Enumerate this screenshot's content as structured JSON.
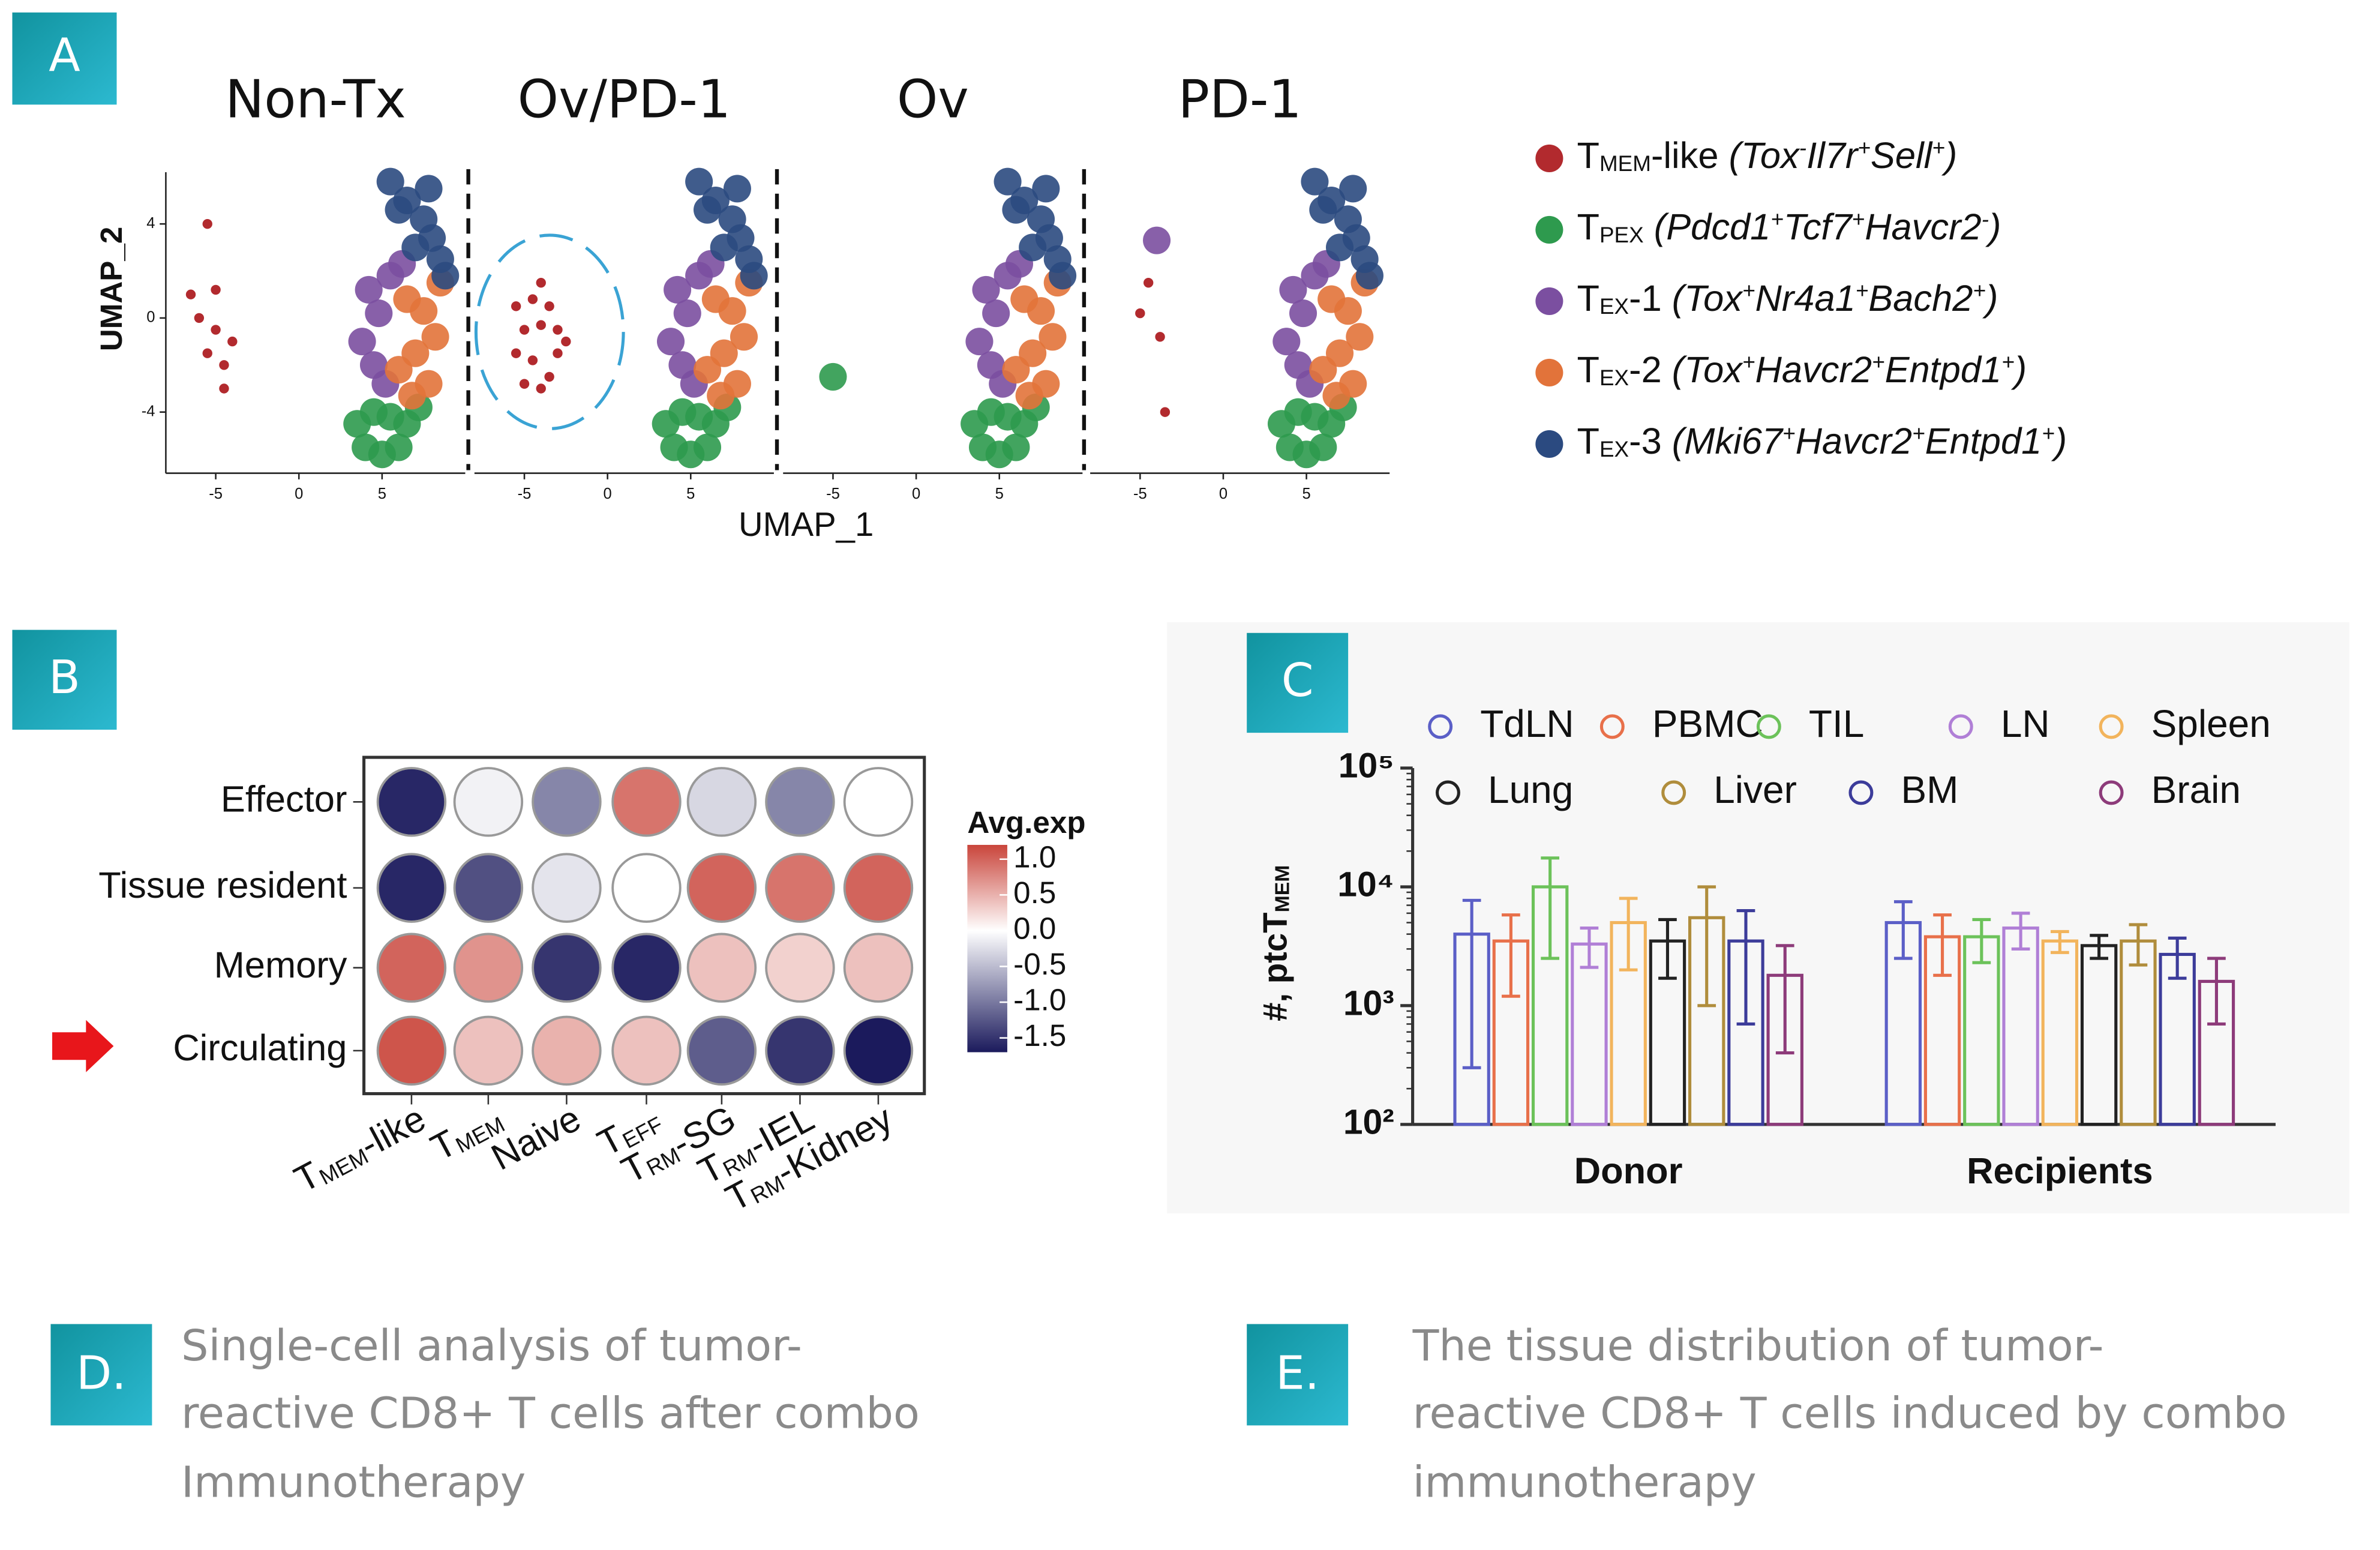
{
  "labels": [
    "A",
    "B",
    "C",
    "D.",
    "E."
  ],
  "captions": [
    [
      "Single-cell analysis of tumor-",
      "reactive CD8+ T cells after combo",
      "Immunotherapy"
    ],
    [
      "The tissue distribution of tumor-",
      "reactive CD8+ T cells induced by combo",
      "immunotherapy"
    ]
  ],
  "chart_data": [
    {
      "type": "scatter",
      "xlabel": "UMAP_1",
      "ylabel": "UMAP_2",
      "xlim": [
        -8,
        10
      ],
      "ylim": [
        -6.6,
        6.2
      ],
      "xticks": [
        -5,
        0,
        5
      ],
      "yticks": [
        -4,
        0,
        4
      ],
      "series": [
        {
          "name": [
            "T",
            "MEM",
            "-like ",
            "(Tox",
            "-",
            "Il7r",
            "+",
            "Sell",
            "+",
            ")"
          ],
          "name_format": [
            "plain",
            "sub",
            "plain",
            "italic",
            "sup",
            "italic",
            "sup",
            "italic",
            "sup",
            "italic"
          ],
          "color": "#b22a2e"
        },
        {
          "name": [
            "T",
            "PEX",
            " (Pdcd1",
            "+",
            "Tcf7",
            "+",
            "Havcr2",
            "-",
            ")"
          ],
          "name_format": [
            "plain",
            "sub",
            "italic",
            "sup",
            "italic",
            "sup",
            "italic",
            "sup",
            "italic"
          ],
          "color": "#2e9a4e"
        },
        {
          "name": [
            "T",
            "EX",
            "-1 ",
            "(Tox",
            "+",
            "Nr4a1",
            "+",
            "Bach2",
            "+",
            ")"
          ],
          "name_format": [
            "plain",
            "sub",
            "plain",
            "italic",
            "sup",
            "italic",
            "sup",
            "italic",
            "sup",
            "italic"
          ],
          "color": "#7b4fa0"
        },
        {
          "name": [
            "T",
            "EX",
            "-2 ",
            "(Tox",
            "+",
            "Havcr2",
            "+",
            "Entpd1",
            "+",
            ")"
          ],
          "name_format": [
            "plain",
            "sub",
            "plain",
            "italic",
            "sup",
            "italic",
            "sup",
            "italic",
            "sup",
            "italic"
          ],
          "color": "#e2733a"
        },
        {
          "name": [
            "T",
            "EX",
            "-3 ",
            "(Mki67",
            "+",
            "Havcr2",
            "+",
            "Entpd1",
            "+",
            ")"
          ],
          "name_format": [
            "plain",
            "sub",
            "plain",
            "italic",
            "sup",
            "italic",
            "sup",
            "italic",
            "sup",
            "italic"
          ],
          "color": "#2b4a80"
        }
      ],
      "panels": [
        {
          "title": "Non-Tx",
          "data": [
            {
              "x": [
                -5.5,
                -6.5,
                -5,
                -6,
                -5,
                -4,
                -5.5,
                -4.5,
                -4.5
              ],
              "y": [
                4,
                1,
                1.2,
                0,
                -0.5,
                -1,
                -1.5,
                -2,
                -3
              ]
            },
            {
              "x": [
                3.5,
                4.5,
                5.5,
                6.5,
                4,
                5,
                6,
                7.2
              ],
              "y": [
                -4.5,
                -4,
                -4.2,
                -4.5,
                -5.5,
                -5.8,
                -5.5,
                -3.8
              ]
            },
            {
              "x": [
                4.2,
                4.8,
                3.8,
                4.5,
                5.2,
                5.5,
                6.2
              ],
              "y": [
                1.2,
                0.2,
                -1,
                -2,
                -2.8,
                1.8,
                2.3
              ]
            },
            {
              "x": [
                6.5,
                7.5,
                8.2,
                7,
                6,
                7.8,
                6.8,
                8.5
              ],
              "y": [
                0.8,
                0.3,
                -0.8,
                -1.5,
                -2.2,
                -2.8,
                -3.3,
                1.5
              ]
            },
            {
              "x": [
                5.5,
                6.5,
                7.5,
                8,
                8.5,
                7,
                6,
                7.8,
                8.8
              ],
              "y": [
                5.8,
                5,
                4.2,
                3.4,
                2.5,
                3,
                4.6,
                5.5,
                1.8
              ]
            }
          ]
        },
        {
          "title": "Ov/PD-1",
          "data": [
            {
              "x": [
                -5.5,
                -4.5,
                -3.5,
                -3,
                -5,
                -4,
                -3,
                -5.5,
                -4.5,
                -3.5,
                -4,
                -2.5,
                -5,
                -4
              ],
              "y": [
                0.5,
                0.8,
                0.5,
                -0.5,
                -0.5,
                -0.3,
                -1.5,
                -1.5,
                -1.8,
                -2.5,
                -3,
                -1,
                -2.8,
                1.5
              ]
            },
            {
              "x": [
                3.5,
                4.5,
                5.5,
                6.5,
                4,
                5,
                6,
                7.2
              ],
              "y": [
                -4.5,
                -4,
                -4.2,
                -4.5,
                -5.5,
                -5.8,
                -5.5,
                -3.8
              ]
            },
            {
              "x": [
                4.2,
                4.8,
                3.8,
                4.5,
                5.2,
                5.5,
                6.2
              ],
              "y": [
                1.2,
                0.2,
                -1,
                -2,
                -2.8,
                1.8,
                2.3
              ]
            },
            {
              "x": [
                6.5,
                7.5,
                8.2,
                7,
                6,
                7.8,
                6.8,
                8.5
              ],
              "y": [
                0.8,
                0.3,
                -0.8,
                -1.5,
                -2.2,
                -2.8,
                -3.3,
                1.5
              ]
            },
            {
              "x": [
                5.5,
                6.5,
                7.5,
                8,
                8.5,
                7,
                6,
                7.8,
                8.8
              ],
              "y": [
                5.8,
                5,
                4.2,
                3.4,
                2.5,
                3,
                4.6,
                5.5,
                1.8
              ]
            }
          ]
        },
        {
          "title": "Ov",
          "data": [
            {
              "x": [],
              "y": []
            },
            {
              "x": [
                -5,
                3.5,
                4.5,
                5.5,
                6.5,
                4,
                5,
                6,
                7.2
              ],
              "y": [
                -2.5,
                -4.5,
                -4,
                -4.2,
                -4.5,
                -5.5,
                -5.8,
                -5.5,
                -3.8
              ]
            },
            {
              "x": [
                4.2,
                4.8,
                3.8,
                4.5,
                5.2,
                5.5,
                6.2
              ],
              "y": [
                1.2,
                0.2,
                -1,
                -2,
                -2.8,
                1.8,
                2.3
              ]
            },
            {
              "x": [
                6.5,
                7.5,
                8.2,
                7,
                6,
                7.8,
                6.8,
                8.5
              ],
              "y": [
                0.8,
                0.3,
                -0.8,
                -1.5,
                -2.2,
                -2.8,
                -3.3,
                1.5
              ]
            },
            {
              "x": [
                5.5,
                6.5,
                7.5,
                8,
                8.5,
                7,
                6,
                7.8,
                8.8
              ],
              "y": [
                5.8,
                5,
                4.2,
                3.4,
                2.5,
                3,
                4.6,
                5.5,
                1.8
              ]
            }
          ]
        },
        {
          "title": "PD-1",
          "data": [
            {
              "x": [
                -4.5,
                -5,
                -3.8,
                -3.5
              ],
              "y": [
                1.5,
                0.2,
                -0.8,
                -4
              ]
            },
            {
              "x": [
                3.5,
                4.5,
                5.5,
                6.5,
                4,
                5,
                6,
                7.2
              ],
              "y": [
                -4.5,
                -4,
                -4.2,
                -4.5,
                -5.5,
                -5.8,
                -5.5,
                -3.8
              ]
            },
            {
              "x": [
                -4,
                4.2,
                4.8,
                3.8,
                4.5,
                5.2,
                5.5,
                6.2
              ],
              "y": [
                3.3,
                1.2,
                0.2,
                -1,
                -2,
                -2.8,
                1.8,
                2.3
              ]
            },
            {
              "x": [
                6.5,
                7.5,
                8.2,
                7,
                6,
                7.8,
                6.8,
                8.5
              ],
              "y": [
                0.8,
                0.3,
                -0.8,
                -1.5,
                -2.2,
                -2.8,
                -3.3,
                1.5
              ]
            },
            {
              "x": [
                5.5,
                6.5,
                7.5,
                8,
                8.5,
                7,
                6,
                7.8,
                8.8
              ],
              "y": [
                5.8,
                5,
                4.2,
                3.4,
                2.5,
                3,
                4.6,
                5.5,
                1.8
              ]
            }
          ]
        }
      ]
    },
    {
      "type": "dotplot",
      "legend_title": "Avg.exp",
      "rows": [
        "Effector",
        "Tissue resident",
        "Memory",
        "Circulating"
      ],
      "columns": [
        [
          "T",
          "MEM",
          "-like"
        ],
        [
          "T",
          "MEM"
        ],
        [
          "Naive"
        ],
        [
          "T",
          "EFF"
        ],
        [
          "T",
          "RM",
          "-SG"
        ],
        [
          "T",
          "RM",
          "-IEL"
        ],
        [
          "T",
          "RM",
          "-Kidney"
        ]
      ],
      "column_format": [
        "plain",
        "sub",
        "plain"
      ],
      "values": [
        [
          -1.6,
          -0.1,
          -0.9,
          0.9,
          -0.3,
          -0.9,
          0.0
        ],
        [
          -1.6,
          -1.3,
          -0.2,
          0.0,
          1.0,
          0.9,
          1.0
        ],
        [
          1.0,
          0.7,
          -1.5,
          -1.6,
          0.4,
          0.3,
          0.4
        ],
        [
          1.1,
          0.4,
          0.5,
          0.4,
          -1.2,
          -1.5,
          -1.7
        ]
      ],
      "clim": [
        -1.7,
        1.2
      ],
      "cticks": [
        {
          "value": 1,
          "label": "1.0"
        },
        0.5,
        {
          "value": 0,
          "label": "0.0"
        },
        -0.5,
        {
          "value": -1,
          "label": "-1.0"
        },
        -1.5
      ],
      "colors": [
        "#1b1a5c",
        "#ffffff",
        "#c9453b"
      ]
    },
    {
      "type": "bar",
      "log": true,
      "ylabel": [
        "#, ptcT",
        "MEM"
      ],
      "ylabel_format": [
        "plain",
        "sub"
      ],
      "categories": [
        "Donor",
        "Recipients"
      ],
      "ylim": [
        100,
        100000
      ],
      "yticks": [
        {
          "value": 100,
          "label": "10²"
        },
        {
          "value": 1000,
          "label": "10³"
        },
        {
          "value": 10000,
          "label": "10⁴"
        },
        {
          "value": 100000,
          "label": "10⁵"
        }
      ],
      "series": [
        {
          "name": "TdLN",
          "color": "#5b5fc7",
          "values": [
            4000,
            5000
          ],
          "errors": [
            3700,
            2500
          ]
        },
        {
          "name": "PBMC",
          "color": "#e8704a",
          "values": [
            3500,
            3800
          ],
          "errors": [
            2300,
            2000
          ]
        },
        {
          "name": "TIL",
          "color": "#6cc25a",
          "values": [
            10000,
            3800
          ],
          "errors": [
            7500,
            1500
          ]
        },
        {
          "name": "LN",
          "color": "#b07fd6",
          "values": [
            3300,
            4500
          ],
          "errors": [
            1200,
            1500
          ]
        },
        {
          "name": "Spleen",
          "color": "#f2b45c",
          "values": [
            5000,
            3500
          ],
          "errors": [
            3000,
            700
          ]
        },
        {
          "name": "Lung",
          "color": "#222222",
          "values": [
            3500,
            3200
          ],
          "errors": [
            1800,
            700
          ]
        },
        {
          "name": "Liver",
          "color": "#b08d3c",
          "values": [
            5500,
            3500
          ],
          "errors": [
            4500,
            1300
          ]
        },
        {
          "name": "BM",
          "color": "#3c3c9a",
          "values": [
            3500,
            2700
          ],
          "errors": [
            2800,
            1000
          ]
        },
        {
          "name": "Brain",
          "color": "#8d3b7a",
          "values": [
            1800,
            1600
          ],
          "errors": [
            1400,
            900
          ]
        }
      ]
    }
  ]
}
